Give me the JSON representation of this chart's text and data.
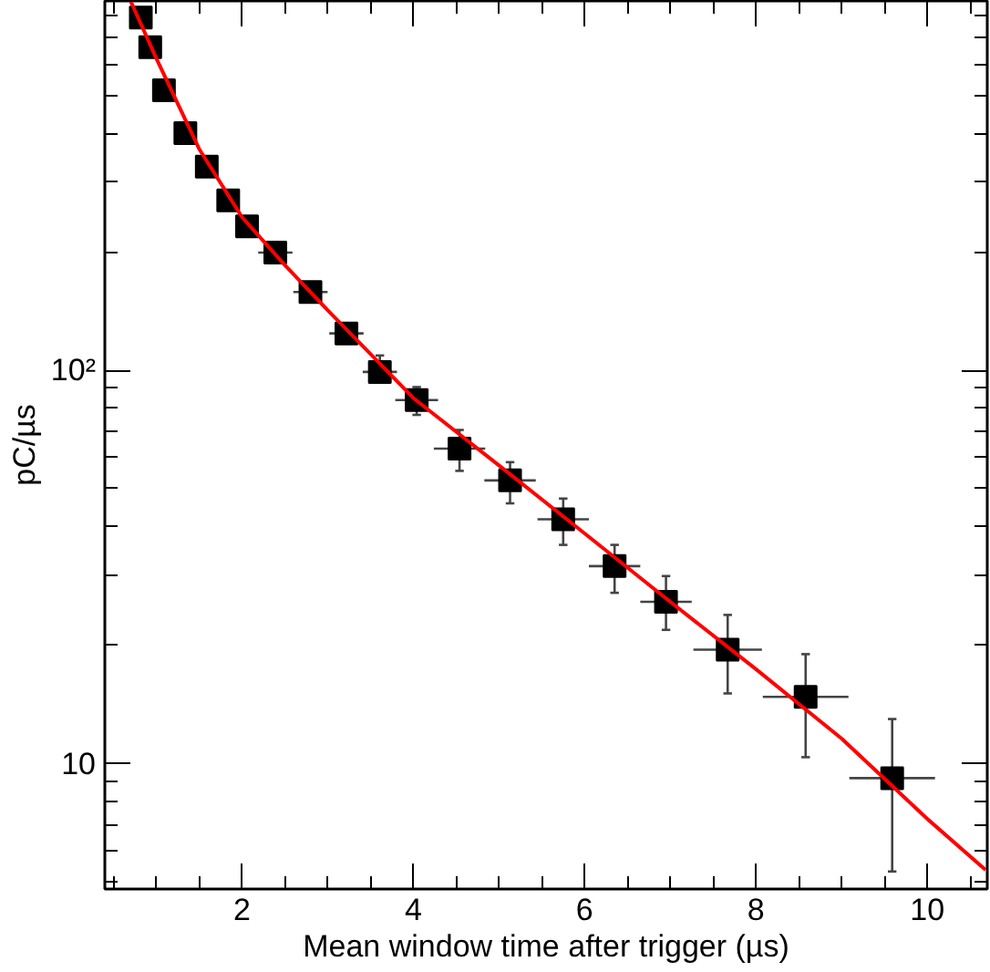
{
  "chart_data": {
    "type": "scatter",
    "xlabel": "Mean window time after trigger (µs)",
    "ylabel": "pC/µs",
    "log": "y",
    "grid": false,
    "xlim": [
      0.4,
      10.7
    ],
    "ylim": [
      4.81,
      867
    ],
    "xticks": [
      {
        "value": 0.5,
        "label": null
      },
      {
        "value": 1,
        "label": null
      },
      {
        "value": 1.5,
        "label": null
      },
      2,
      {
        "value": 2.5,
        "label": null
      },
      {
        "value": 3,
        "label": null
      },
      {
        "value": 3.5,
        "label": null
      },
      4,
      {
        "value": 4.5,
        "label": null
      },
      {
        "value": 5,
        "label": null
      },
      {
        "value": 5.5,
        "label": null
      },
      6,
      {
        "value": 6.5,
        "label": null
      },
      {
        "value": 7,
        "label": null
      },
      {
        "value": 7.5,
        "label": null
      },
      8,
      {
        "value": 8.5,
        "label": null
      },
      {
        "value": 9,
        "label": null
      },
      {
        "value": 9.5,
        "label": null
      },
      10,
      {
        "value": 10.5,
        "label": null
      }
    ],
    "yticks": [
      {
        "value": 5,
        "label": null
      },
      {
        "value": 6,
        "label": null
      },
      {
        "value": 7,
        "label": null
      },
      {
        "value": 8,
        "label": null
      },
      {
        "value": 9,
        "label": null
      },
      10,
      {
        "value": 20,
        "label": null
      },
      {
        "value": 30,
        "label": null
      },
      {
        "value": 40,
        "label": null
      },
      {
        "value": 50,
        "label": null
      },
      {
        "value": 60,
        "label": null
      },
      {
        "value": 70,
        "label": null
      },
      {
        "value": 80,
        "label": null
      },
      {
        "value": 90,
        "label": null
      },
      {
        "value": 100,
        "label": "10²"
      },
      {
        "value": 200,
        "label": null
      },
      {
        "value": 300,
        "label": null
      },
      {
        "value": 400,
        "label": null
      },
      {
        "value": 500,
        "label": null
      },
      {
        "value": 600,
        "label": null
      },
      {
        "value": 700,
        "label": null
      },
      {
        "value": 800,
        "label": null
      }
    ],
    "series": [
      {
        "color": "#000000",
        "marker": "square",
        "x": [
          0.82,
          0.93,
          1.09,
          1.34,
          1.59,
          1.84,
          2.06,
          2.39,
          2.8,
          3.22,
          3.61,
          4.04,
          4.54,
          5.13,
          5.75,
          6.35,
          6.95,
          7.67,
          8.58,
          9.59
        ],
        "values": [
          787,
          661,
          514,
          400,
          329,
          270,
          232,
          199,
          158,
          124,
          99,
          84,
          63.2,
          52.5,
          41.8,
          31.8,
          25.8,
          19.5,
          14.8,
          9.2
        ],
        "errors": [
          null,
          null,
          null,
          null,
          null,
          null,
          null,
          null,
          null,
          null,
          [
            94.7,
            109
          ],
          [
            77,
            90.6
          ],
          [
            55.5,
            70.5
          ],
          [
            45.9,
            58.4
          ],
          [
            36,
            47.2
          ],
          [
            27.2,
            36
          ],
          [
            21.9,
            30
          ],
          [
            15.1,
            23.9
          ],
          [
            10.4,
            19
          ],
          [
            5.33,
            13
          ]
        ],
        "xerrors": [
          null,
          null,
          null,
          null,
          null,
          null,
          null,
          0.2,
          0.2,
          0.2,
          0.2,
          0.25,
          0.3,
          0.3,
          0.3,
          0.3,
          0.3,
          0.4,
          0.5,
          0.5
        ]
      },
      {
        "type": "line",
        "color": "#ff0000",
        "marker": "none",
        "line_style": "solid",
        "x": [
          0.7,
          1.0,
          1.5,
          2,
          2.5,
          3,
          3.5,
          4,
          5,
          6,
          7,
          8,
          9,
          10,
          10.68
        ],
        "values": [
          867,
          620,
          365,
          245,
          185,
          142,
          110,
          85,
          57.3,
          38.5,
          25.8,
          17.4,
          11.6,
          7.25,
          5.38
        ]
      }
    ]
  }
}
